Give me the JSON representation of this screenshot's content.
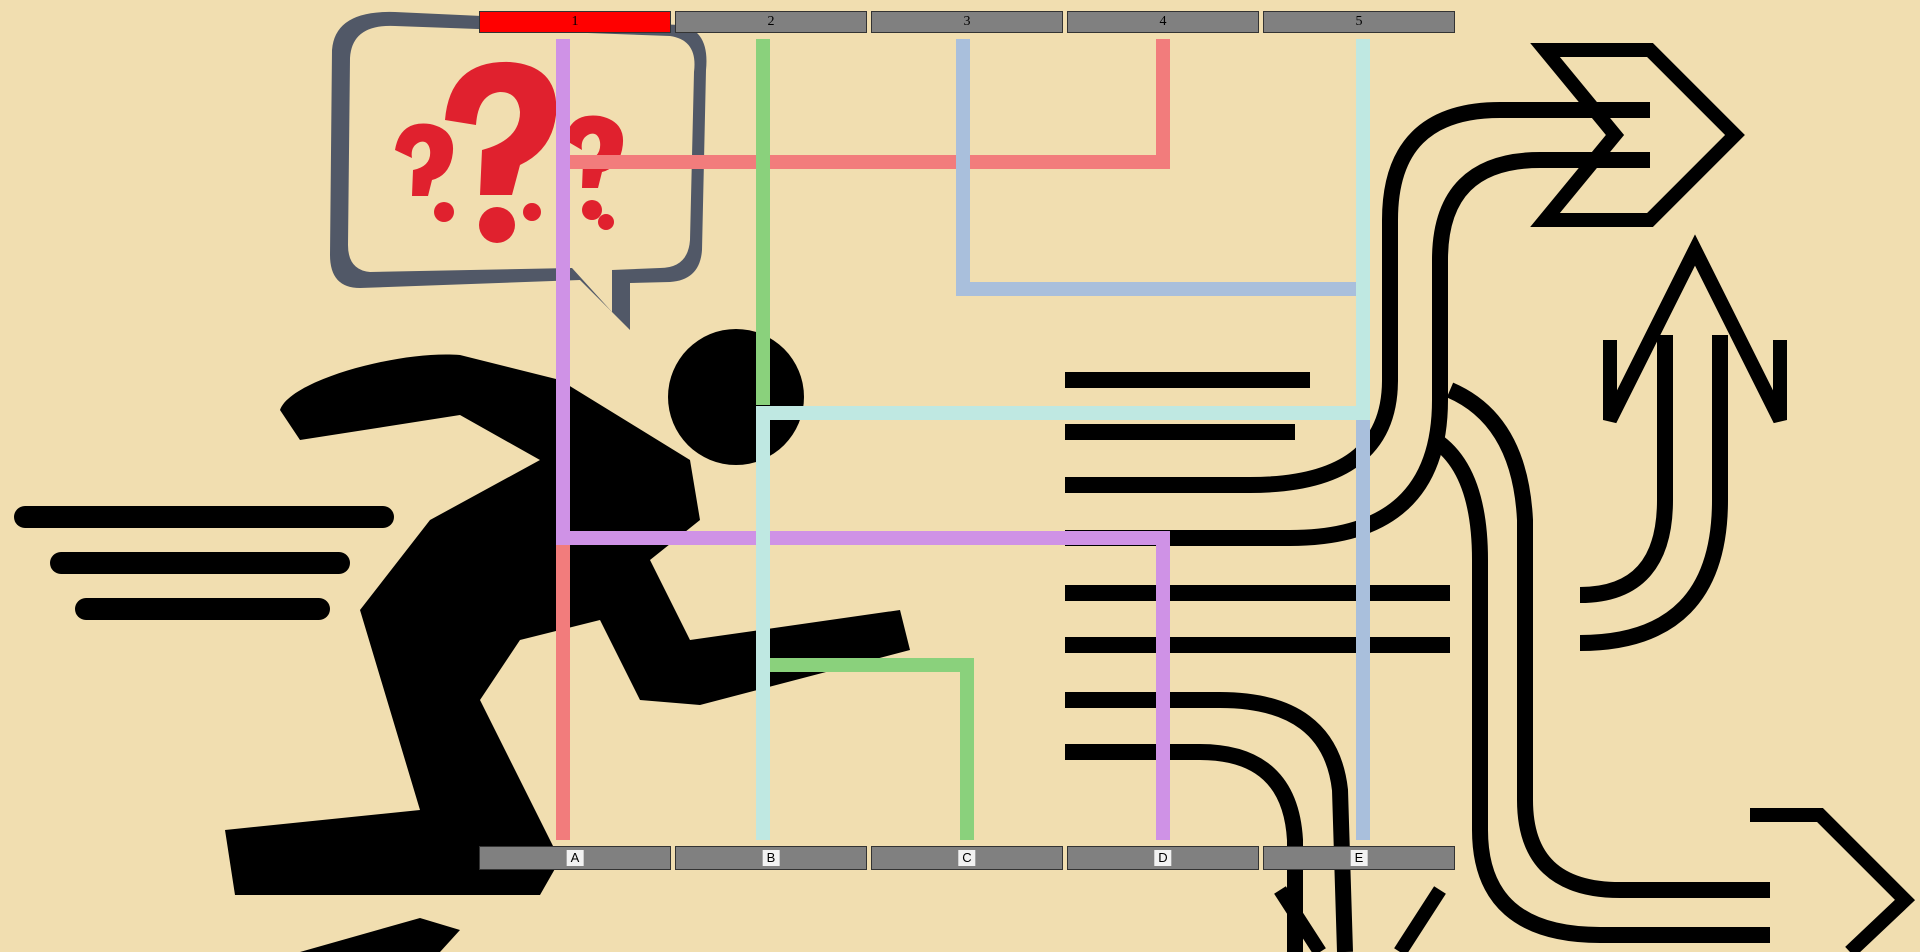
{
  "top_buttons": [
    {
      "label": "1",
      "active": true
    },
    {
      "label": "2",
      "active": false
    },
    {
      "label": "3",
      "active": false
    },
    {
      "label": "4",
      "active": false
    },
    {
      "label": "5",
      "active": false
    }
  ],
  "bottom_labels": [
    "A",
    "B",
    "C",
    "D",
    "E"
  ],
  "colors": {
    "background": "#f1deb0",
    "active_button": "#ff0000",
    "button": "#808080",
    "path_salmon": "#f27c7c",
    "path_violet": "#cf92e6",
    "path_green": "#8ad17c",
    "path_lightblue": "#a9bfdc",
    "path_mint": "#bfe8e2"
  },
  "background_art": [
    "runner-silhouette-icon",
    "question-speech-bubble-icon",
    "curved-arrows-icon"
  ]
}
